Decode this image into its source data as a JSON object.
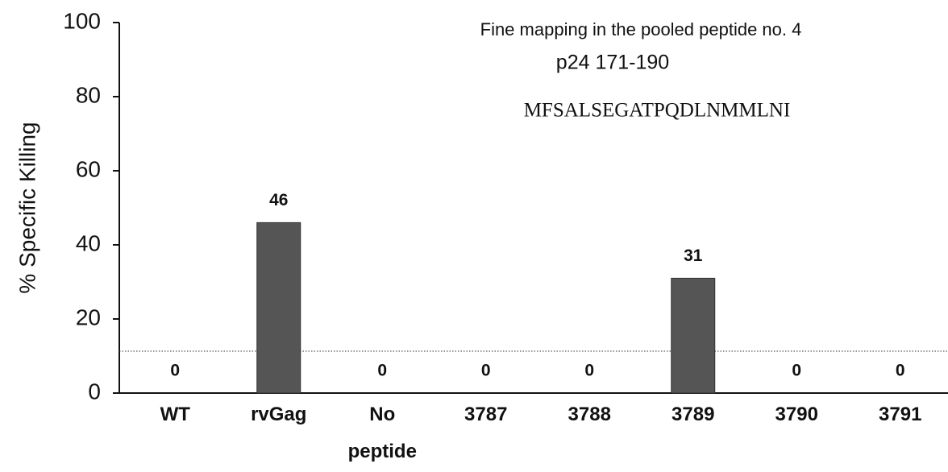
{
  "chart_data": {
    "type": "bar",
    "y_label": "% Specific Killing",
    "annotations": [
      "Fine mapping in the pooled peptide no. 4",
      "p24  171-190",
      "MFSALSEGATPQDLNMMLNI"
    ],
    "categories": [
      "WT",
      "rvGag",
      "No peptide",
      "3787",
      "3788",
      "3789",
      "3790",
      "3791"
    ],
    "values": [
      0,
      46,
      0,
      0,
      0,
      31,
      0,
      0
    ],
    "color": "#555555",
    "reference_line": 11.3,
    "ylim": [
      0,
      100
    ],
    "yticks": [
      0,
      20,
      40,
      60,
      80,
      100
    ]
  }
}
